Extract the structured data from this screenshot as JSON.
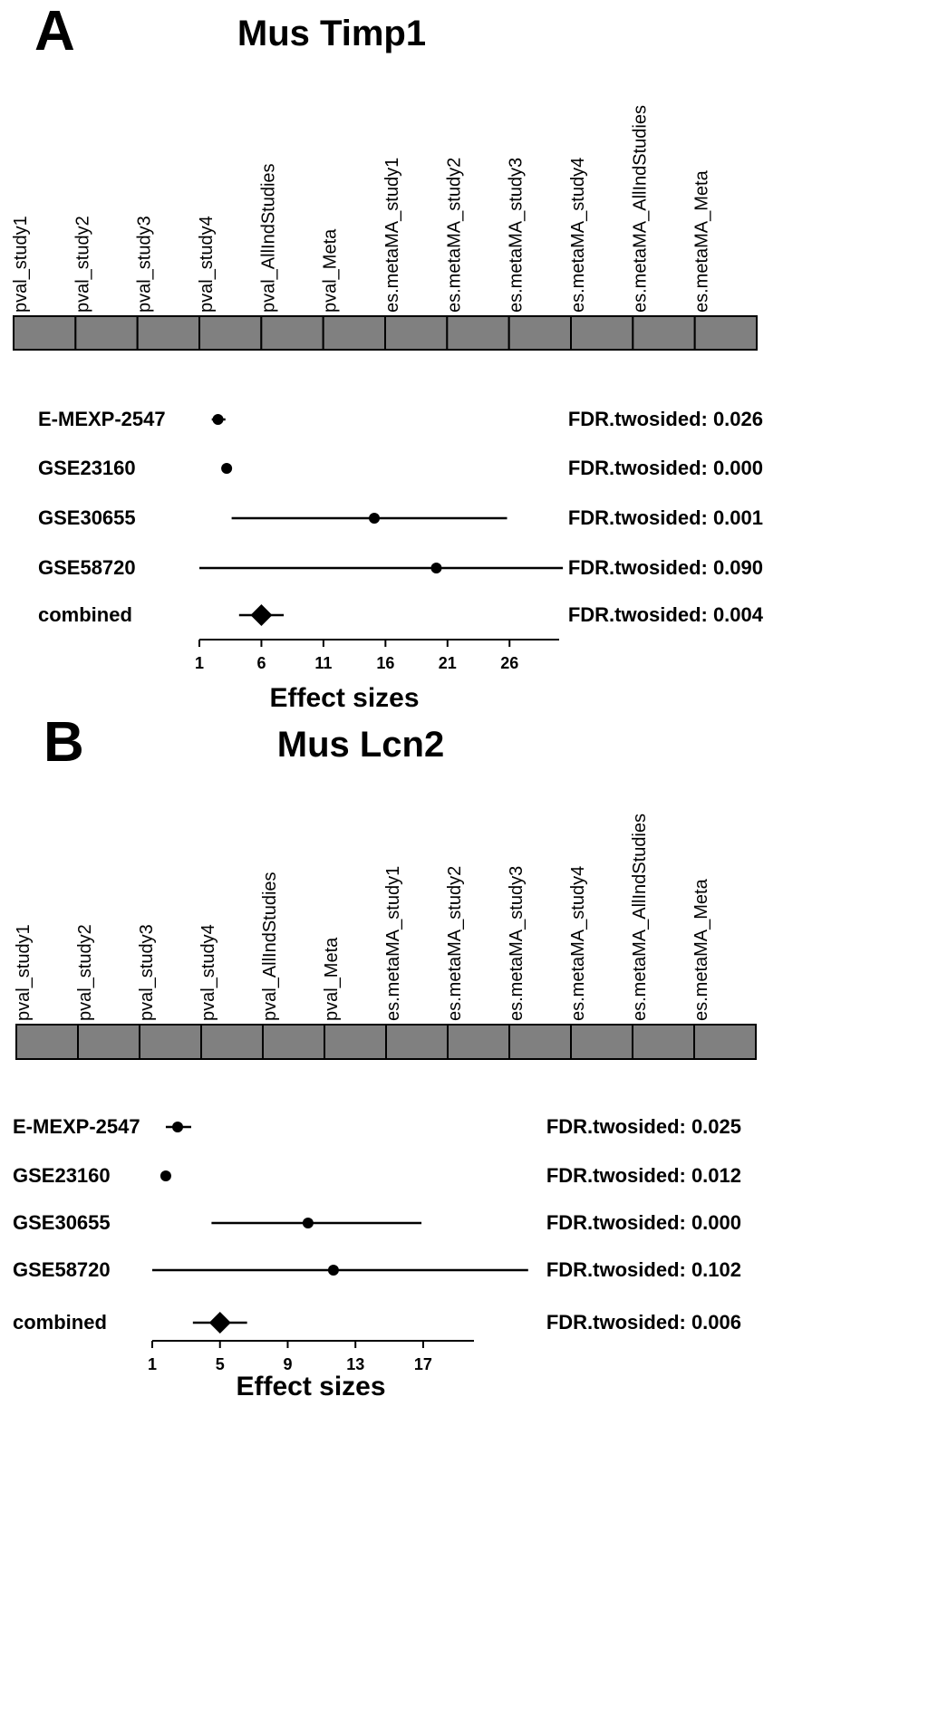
{
  "panels": [
    {
      "letter": "A",
      "title": "Mus Timp1",
      "column_labels": [
        "pval_study1",
        "pval_study2",
        "pval_study3",
        "pval_study4",
        "pval_AllIndStudies",
        "pval_Meta",
        "es.metaMA_study1",
        "es.metaMA_study2",
        "es.metaMA_study3",
        "es.metaMA_study4",
        "es.metaMA_AllIndStudies",
        "es.metaMA_Meta"
      ],
      "cell_color": "#808080",
      "chart_data": {
        "type": "forest",
        "xlabel": "Effect sizes",
        "xticks": [
          1,
          6,
          11,
          16,
          21,
          26
        ],
        "xlim": [
          1,
          30
        ],
        "rows": [
          {
            "label": "E-MEXP-2547",
            "estimate": 2.5,
            "ci": [
              2.0,
              3.1
            ],
            "marker": "circle",
            "fdr": "FDR.twosided: 0.026"
          },
          {
            "label": "GSE23160",
            "estimate": 3.2,
            "ci": [
              3.2,
              3.2
            ],
            "marker": "circle",
            "fdr": "FDR.twosided: 0.000"
          },
          {
            "label": "GSE30655",
            "estimate": 15.1,
            "ci": [
              3.6,
              25.8
            ],
            "marker": "circle",
            "fdr": "FDR.twosided: 0.001"
          },
          {
            "label": "GSE58720",
            "estimate": 20.1,
            "ci": [
              1.0,
              30.3
            ],
            "marker": "circle",
            "fdr": "FDR.twosided: 0.090"
          },
          {
            "label": "combined",
            "estimate": 6.0,
            "ci": [
              4.2,
              7.8
            ],
            "marker": "diamond",
            "fdr": "FDR.twosided: 0.004"
          }
        ]
      }
    },
    {
      "letter": "B",
      "title": "Mus Lcn2",
      "column_labels": [
        "pval_study1",
        "pval_study2",
        "pval_study3",
        "pval_study4",
        "pval_AllIndStudies",
        "pval_Meta",
        "es.metaMA_study1",
        "es.metaMA_study2",
        "es.metaMA_study3",
        "es.metaMA_study4",
        "es.metaMA_AllIndStudies",
        "es.metaMA_Meta"
      ],
      "cell_color": "#808080",
      "chart_data": {
        "type": "forest",
        "xlabel": "Effect sizes",
        "xticks": [
          1,
          5,
          9,
          13,
          17
        ],
        "xlim": [
          1,
          20
        ],
        "rows": [
          {
            "label": "E-MEXP-2547",
            "estimate": 2.5,
            "ci": [
              1.8,
              3.3
            ],
            "marker": "circle",
            "fdr": "FDR.twosided: 0.025"
          },
          {
            "label": "GSE23160",
            "estimate": 1.8,
            "ci": [
              1.8,
              1.8
            ],
            "marker": "circle",
            "fdr": "FDR.twosided: 0.012"
          },
          {
            "label": "GSE30655",
            "estimate": 10.2,
            "ci": [
              4.5,
              16.9
            ],
            "marker": "circle",
            "fdr": "FDR.twosided: 0.000"
          },
          {
            "label": "GSE58720",
            "estimate": 11.7,
            "ci": [
              1.0,
              23.2
            ],
            "marker": "circle",
            "fdr": "FDR.twosided: 0.102"
          },
          {
            "label": "combined",
            "estimate": 5.0,
            "ci": [
              3.4,
              6.6
            ],
            "marker": "diamond",
            "fdr": "FDR.twosided: 0.006"
          }
        ]
      }
    }
  ]
}
